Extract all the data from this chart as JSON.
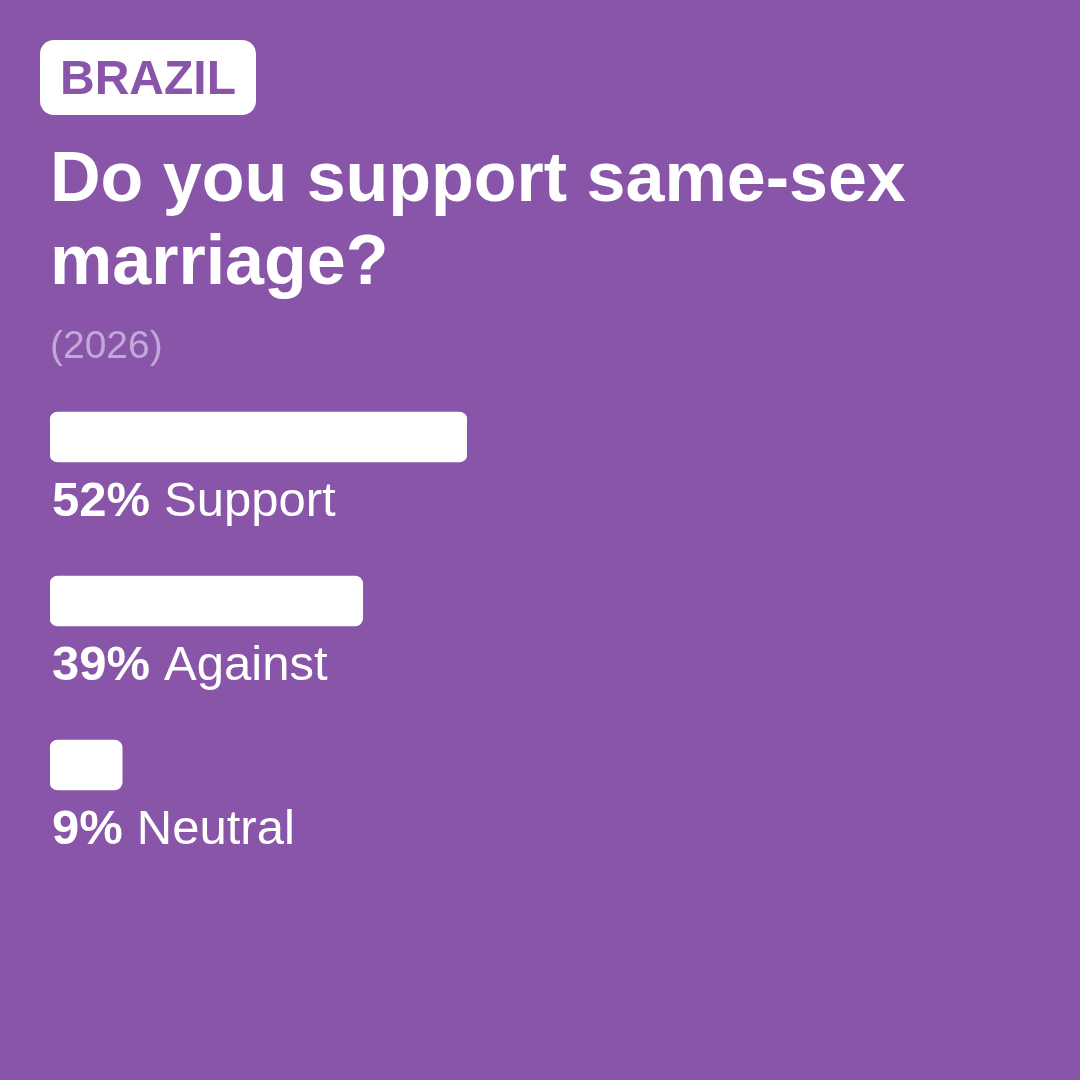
{
  "chart_data": {
    "type": "bar",
    "orientation": "horizontal",
    "title": "Do you support same-sex marriage?",
    "annotations": [
      "BRAZIL",
      "(2026)"
    ],
    "categories": [
      "Support",
      "Against",
      "Neutral"
    ],
    "values": [
      52,
      39,
      9
    ],
    "value_labels": [
      "52%",
      "39%",
      "9%"
    ],
    "color": "#ffffff",
    "tick_labels": false
  }
}
